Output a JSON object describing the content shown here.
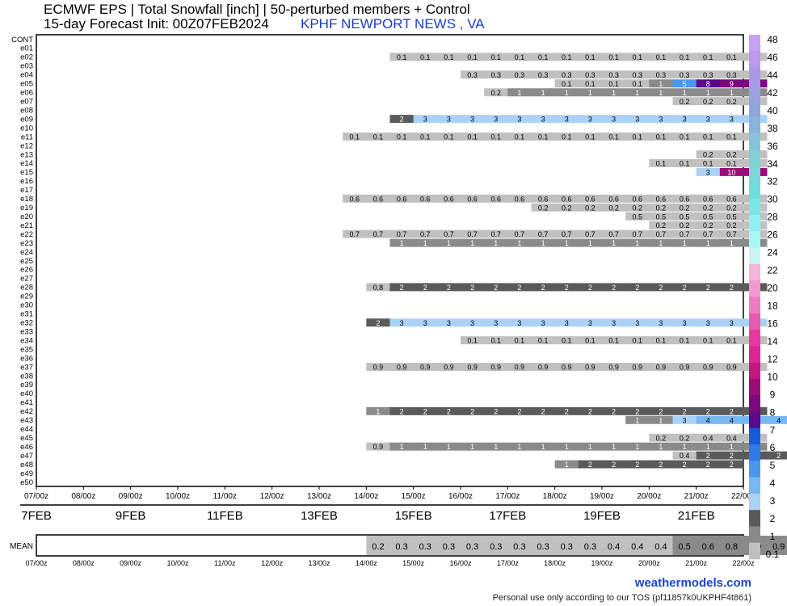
{
  "header": {
    "title": "ECMWF EPS | Total Snowfall [inch] | 50-perturbed members + Control",
    "subtitle": "15-day Forecast Init: 00Z07FEB2024",
    "location": "KPHF NEWPORT NEWS    , VA"
  },
  "footer": {
    "site": "weathermodels.com",
    "tos": "Personal use only according to our TOS (pf11857k0UKPHF4t861)"
  },
  "chart_data": {
    "type": "heatmap",
    "title": "ECMWF EPS | Total Snowfall [inch] | 50-perturbed members + Control",
    "members": [
      "CONT",
      "e01",
      "e02",
      "e03",
      "e04",
      "e05",
      "e06",
      "e07",
      "e08",
      "e09",
      "e10",
      "e11",
      "e12",
      "e13",
      "e14",
      "e15",
      "e16",
      "e17",
      "e18",
      "e19",
      "e20",
      "e21",
      "e22",
      "e23",
      "e24",
      "e25",
      "e26",
      "e27",
      "e28",
      "e29",
      "e30",
      "e31",
      "e32",
      "e33",
      "e34",
      "e35",
      "e36",
      "e37",
      "e38",
      "e39",
      "e40",
      "e41",
      "e42",
      "e43",
      "e44",
      "e45",
      "e46",
      "e47",
      "e48",
      "e49",
      "e50"
    ],
    "x_tick_labels": [
      "07/00z",
      "08/00z",
      "09/00z",
      "10/00z",
      "11/00z",
      "12/00z",
      "13/00z",
      "14/00z",
      "15/00z",
      "16/00z",
      "17/00z",
      "18/00z",
      "19/00z",
      "20/00z",
      "21/00z",
      "22/00z"
    ],
    "date_labels": [
      "7FEB",
      "9FEB",
      "11FEB",
      "13FEB",
      "15FEB",
      "17FEB",
      "19FEB",
      "21FEB"
    ],
    "time_step_hours": 12,
    "members_data": {
      "e02": {
        "start": 15,
        "values": [
          "0.1",
          "0.1",
          "0.1",
          "0.1",
          "0.1",
          "0.1",
          "0.1",
          "0.1",
          "0.1",
          "0.1",
          "0.1",
          "0.1",
          "0.1",
          "0.1",
          "0.1",
          "0.1"
        ]
      },
      "e04": {
        "start": 18,
        "values": [
          "0.3",
          "0.3",
          "0.3",
          "0.3",
          "0.3",
          "0.3",
          "0.3",
          "0.3",
          "0.3",
          "0.3",
          "0.3",
          "0.3",
          "0.3"
        ]
      },
      "e05": {
        "start": 22,
        "values": [
          "0.1",
          "0.1",
          "0.1",
          "0.1",
          "1",
          "5",
          "8",
          "9",
          "9"
        ]
      },
      "e06": {
        "start": 19,
        "values": [
          "0.2",
          "1",
          "1",
          "1",
          "1",
          "1",
          "1",
          "1",
          "1",
          "1",
          "1",
          "1"
        ]
      },
      "e07": {
        "start": 27,
        "values": [
          "0.2",
          "0.2",
          "0.2",
          "0.4"
        ]
      },
      "e09": {
        "start": 15,
        "values": [
          "2",
          "3",
          "3",
          "3",
          "3",
          "3",
          "3",
          "3",
          "3",
          "3",
          "3",
          "3",
          "3",
          "3",
          "3",
          "3"
        ]
      },
      "e11": {
        "start": 13,
        "values": [
          "0.1",
          "0.1",
          "0.1",
          "0.1",
          "0.1",
          "0.1",
          "0.1",
          "0.1",
          "0.1",
          "0.1",
          "0.1",
          "0.1",
          "0.1",
          "0.1",
          "0.1",
          "0.1",
          "0.1",
          "0.1"
        ]
      },
      "e13": {
        "start": 28,
        "values": [
          "0.2",
          "0.2",
          "0.2"
        ]
      },
      "e14": {
        "start": 26,
        "values": [
          "0.1",
          "0.1",
          "0.1",
          "0.1",
          "0.1"
        ]
      },
      "e15": {
        "start": 28,
        "values": [
          "3",
          "10",
          "10"
        ]
      },
      "e18": {
        "start": 13,
        "values": [
          "0.6",
          "0.6",
          "0.6",
          "0.6",
          "0.6",
          "0.6",
          "0.6",
          "0.6",
          "0.6",
          "0.6",
          "0.6",
          "0.6",
          "0.6",
          "0.6",
          "0.6",
          "0.6",
          "0.6",
          "0.6"
        ]
      },
      "e19": {
        "start": 21,
        "values": [
          "0.2",
          "0.2",
          "0.2",
          "0.2",
          "0.2",
          "0.2",
          "0.2",
          "0.2",
          "0.2",
          "0.2"
        ]
      },
      "e20": {
        "start": 25,
        "values": [
          "0.5",
          "0.5",
          "0.5",
          "0.5",
          "0.5",
          "0.5"
        ]
      },
      "e21": {
        "start": 26,
        "values": [
          "0.2",
          "0.2",
          "0.2",
          "0.2",
          "0.2"
        ]
      },
      "e22": {
        "start": 13,
        "values": [
          "0.7",
          "0.7",
          "0.7",
          "0.7",
          "0.7",
          "0.7",
          "0.7",
          "0.7",
          "0.7",
          "0.7",
          "0.7",
          "0.7",
          "0.7",
          "0.7",
          "0.7",
          "0.7",
          "0.7",
          "0.8"
        ]
      },
      "e23": {
        "start": 15,
        "values": [
          "1",
          "1",
          "1",
          "1",
          "1",
          "1",
          "1",
          "1",
          "1",
          "1",
          "1",
          "1",
          "1",
          "1",
          "1",
          "1"
        ]
      },
      "e28": {
        "start": 14,
        "values": [
          "0.8",
          "2",
          "2",
          "2",
          "2",
          "2",
          "2",
          "2",
          "2",
          "2",
          "2",
          "2",
          "2",
          "2",
          "2",
          "2",
          "2"
        ]
      },
      "e32": {
        "start": 14,
        "values": [
          "2",
          "3",
          "3",
          "3",
          "3",
          "3",
          "3",
          "3",
          "3",
          "3",
          "3",
          "3",
          "3",
          "3",
          "3",
          "3",
          "3"
        ]
      },
      "e34": {
        "start": 18,
        "values": [
          "0.1",
          "0.1",
          "0.1",
          "0.1",
          "0.1",
          "0.1",
          "0.1",
          "0.1",
          "0.1",
          "0.1",
          "0.1",
          "0.1",
          "0.1"
        ]
      },
      "e37": {
        "start": 14,
        "values": [
          "0.9",
          "0.9",
          "0.9",
          "0.9",
          "0.9",
          "0.9",
          "0.9",
          "0.9",
          "0.9",
          "0.9",
          "0.9",
          "0.9",
          "0.9",
          "0.9",
          "0.9",
          "0.9",
          "0.9"
        ]
      },
      "e42": {
        "start": 14,
        "values": [
          "1",
          "2",
          "2",
          "2",
          "2",
          "2",
          "2",
          "2",
          "2",
          "2",
          "2",
          "2",
          "2",
          "2",
          "2",
          "2",
          "2"
        ]
      },
      "e43": {
        "start": 25,
        "values": [
          "1",
          "1",
          "3",
          "4",
          "4",
          "4",
          "4"
        ]
      },
      "e45": {
        "start": 26,
        "values": [
          "0.2",
          "0.2",
          "0.4",
          "0.4",
          "0.4"
        ]
      },
      "e46": {
        "start": 14,
        "values": [
          "0.9",
          "1",
          "1",
          "1",
          "1",
          "1",
          "1",
          "1",
          "1",
          "1",
          "1",
          "1",
          "1",
          "1",
          "1",
          "1",
          "1"
        ]
      },
      "e47": {
        "start": 27,
        "values": [
          "0.4",
          "2",
          "2",
          "2",
          "2"
        ]
      },
      "e48": {
        "start": 22,
        "values": [
          "1",
          "2",
          "2",
          "2",
          "2",
          "2",
          "2",
          "2"
        ]
      }
    },
    "mean": {
      "start": 14,
      "values": [
        "0.2",
        "0.3",
        "0.3",
        "0.3",
        "0.3",
        "0.3",
        "0.3",
        "0.3",
        "0.3",
        "0.3",
        "0.4",
        "0.4",
        "0.4",
        "0.5",
        "0.6",
        "0.8",
        "0.9",
        "0.9"
      ]
    },
    "mean_label": "MEAN",
    "colorbar": {
      "label_values": [
        "48",
        "46",
        "44",
        "42",
        "40",
        "38",
        "36",
        "34",
        "32",
        "30",
        "28",
        "26",
        "24",
        "22",
        "20",
        "18",
        "16",
        "14",
        "12",
        "10",
        "9",
        "8",
        "7",
        "6",
        "5",
        "4",
        "3",
        "2",
        "1",
        "0.1"
      ],
      "colors": [
        "#c8a0f0",
        "#b99aec",
        "#a997e4",
        "#9d9fe0",
        "#8fa6dc",
        "#88b4d8",
        "#86c3d8",
        "#82cfd6",
        "#7cd8d8",
        "#6fdcdc",
        "#7ae6e6",
        "#8ef0f0",
        "#aaf6f6",
        "#c8f4f4",
        "#f3b5d8",
        "#f09ace",
        "#ec7cc0",
        "#e85ab0",
        "#e43aa0",
        "#e02490",
        "#c0187e",
        "#9a0e7a",
        "#7a0a7e",
        "#5a0a8a",
        "#1a5ad8",
        "#2f7ae8",
        "#4a98ee",
        "#78b8f2",
        "#a9d2f6",
        "#5a5a5a",
        "#8a8a8a",
        "#c0c0c0"
      ],
      "thresholds": [
        0.1,
        1,
        2,
        3,
        4,
        5,
        6,
        7,
        8,
        9,
        10,
        12,
        14,
        16,
        18,
        20,
        22,
        24,
        26,
        28,
        30,
        32,
        34,
        36,
        38,
        40,
        42,
        44,
        46,
        48
      ]
    }
  }
}
